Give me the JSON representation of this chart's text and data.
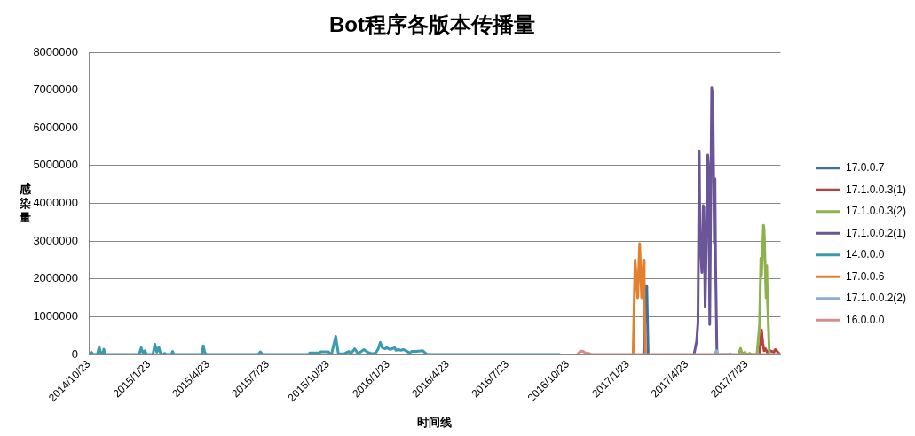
{
  "chart_data": {
    "type": "line",
    "title": "Bot程序各版本传播量",
    "xlabel": "时间线",
    "ylabel": "感染量",
    "xlim": [
      "2014-10-23",
      "2017-09-13"
    ],
    "xticks": [
      {
        "value": "2014-10-23",
        "label": "2014/10/23"
      },
      {
        "value": "2015-01-23",
        "label": "2015/1/23"
      },
      {
        "value": "2015-04-23",
        "label": "2015/4/23"
      },
      {
        "value": "2015-07-23",
        "label": "2015/7/23"
      },
      {
        "value": "2015-10-23",
        "label": "2015/10/23"
      },
      {
        "value": "2016-01-23",
        "label": "2016/1/23"
      },
      {
        "value": "2016-04-23",
        "label": "2016/4/23"
      },
      {
        "value": "2016-07-23",
        "label": "2016/7/23"
      },
      {
        "value": "2016-10-23",
        "label": "2016/10/23"
      },
      {
        "value": "2017-01-23",
        "label": "2017/1/23"
      },
      {
        "value": "2017-04-23",
        "label": "2017/4/23"
      },
      {
        "value": "2017-07-23",
        "label": "2017/7/23"
      }
    ],
    "ylim": [
      0,
      8000000
    ],
    "yticks": [
      0,
      1000000,
      2000000,
      3000000,
      4000000,
      5000000,
      6000000,
      7000000,
      8000000
    ],
    "grid": "y",
    "legend": "right",
    "marker": "none",
    "series": [
      {
        "name": "17.0.0.7",
        "color": "#3d6fa6",
        "x": [
          "2017-02-16",
          "2017-02-20",
          "2017-02-21",
          "2017-02-23"
        ],
        "values": [
          0,
          1800000,
          1700000,
          0
        ]
      },
      {
        "name": "17.1.0.0.3(1)",
        "color": "#b7413e",
        "x": [
          "2017-08-12",
          "2017-08-15",
          "2017-08-17",
          "2017-08-19",
          "2017-08-21",
          "2017-08-24",
          "2017-08-28",
          "2017-08-31",
          "2017-09-03",
          "2017-09-05",
          "2017-09-07",
          "2017-09-11"
        ],
        "values": [
          0,
          650000,
          300000,
          100000,
          150000,
          50000,
          100000,
          80000,
          60000,
          130000,
          100000,
          20000
        ]
      },
      {
        "name": "17.1.0.0.3(2)",
        "color": "#8db14c",
        "x": [
          "2017-07-11",
          "2017-07-14",
          "2017-07-16",
          "2017-07-17",
          "2017-07-21",
          "2017-07-23",
          "2017-07-28",
          "2017-07-30",
          "2017-08-08",
          "2017-08-12",
          "2017-08-14",
          "2017-08-15",
          "2017-08-18",
          "2017-08-19",
          "2017-08-22",
          "2017-08-23",
          "2017-08-24",
          "2017-08-27"
        ],
        "values": [
          0,
          160000,
          60000,
          0,
          60000,
          0,
          30000,
          0,
          0,
          780000,
          2550000,
          2070000,
          3420000,
          3300000,
          1500000,
          2350000,
          1500000,
          0
        ]
      },
      {
        "name": "17.1.0.0.2(1)",
        "color": "#6a5597",
        "x": [
          "2017-05-04",
          "2017-05-08",
          "2017-05-10",
          "2017-05-12",
          "2017-05-13",
          "2017-05-16",
          "2017-05-18",
          "2017-05-19",
          "2017-05-21",
          "2017-05-23",
          "2017-05-25",
          "2017-05-26",
          "2017-05-27",
          "2017-05-28",
          "2017-05-31",
          "2017-06-01",
          "2017-06-02",
          "2017-06-04",
          "2017-06-05",
          "2017-06-06",
          "2017-06-08"
        ],
        "values": [
          0,
          350000,
          830000,
          5390000,
          3270000,
          2170000,
          3940000,
          3900000,
          1260000,
          3100000,
          5280000,
          5000000,
          3400000,
          790000,
          7070000,
          6900000,
          6420000,
          2950000,
          4650000,
          2320000,
          0
        ]
      },
      {
        "name": "14.0.0.0",
        "color": "#3b9ab0",
        "x": [
          "2014-10-23",
          "2014-10-27",
          "2014-10-30",
          "2014-11-05",
          "2014-11-08",
          "2014-11-11",
          "2014-11-13",
          "2014-11-15",
          "2014-11-17",
          "2015-01-08",
          "2015-01-11",
          "2015-01-14",
          "2015-01-17",
          "2015-01-19",
          "2015-01-29",
          "2015-02-01",
          "2015-02-04",
          "2015-02-07",
          "2015-02-10",
          "2015-02-14",
          "2015-02-16",
          "2015-02-18",
          "2015-02-26",
          "2015-02-28",
          "2015-03-02",
          "2015-04-12",
          "2015-04-14",
          "2015-04-16",
          "2015-04-18",
          "2015-04-20",
          "2015-07-09",
          "2015-07-12",
          "2015-07-15",
          "2015-09-24",
          "2015-09-25",
          "2015-10-10",
          "2015-10-12",
          "2015-10-24",
          "2015-10-27",
          "2015-10-29",
          "2015-11-04",
          "2015-11-08",
          "2015-11-17",
          "2015-11-24",
          "2015-11-27",
          "2015-12-03",
          "2015-12-08",
          "2015-12-17",
          "2015-12-21",
          "2015-12-25",
          "2015-12-30",
          "2016-01-04",
          "2016-01-08",
          "2016-01-11",
          "2016-01-14",
          "2016-01-18",
          "2016-01-21",
          "2016-01-26",
          "2016-02-02",
          "2016-02-04",
          "2016-02-08",
          "2016-02-11",
          "2016-02-16",
          "2016-02-21",
          "2016-02-25",
          "2016-02-28",
          "2016-03-06",
          "2016-03-16",
          "2016-03-21",
          "2016-03-23",
          "2016-10-11"
        ],
        "values": [
          0,
          60000,
          0,
          0,
          190000,
          0,
          0,
          140000,
          0,
          0,
          180000,
          30000,
          100000,
          0,
          0,
          270000,
          60000,
          190000,
          0,
          0,
          30000,
          0,
          0,
          80000,
          0,
          0,
          40000,
          230000,
          60000,
          0,
          0,
          70000,
          0,
          0,
          40000,
          40000,
          70000,
          70000,
          0,
          40000,
          480000,
          20000,
          20000,
          80000,
          20000,
          150000,
          20000,
          130000,
          80000,
          40000,
          20000,
          40000,
          150000,
          320000,
          180000,
          150000,
          180000,
          130000,
          180000,
          110000,
          130000,
          110000,
          130000,
          80000,
          40000,
          80000,
          80000,
          100000,
          20000,
          0,
          0
        ]
      },
      {
        "name": "17.0.0.6",
        "color": "#e3802f",
        "x": [
          "2017-01-31",
          "2017-02-03",
          "2017-02-07",
          "2017-02-10",
          "2017-02-13",
          "2017-02-16",
          "2017-02-17",
          "2017-02-19"
        ],
        "values": [
          0,
          2500000,
          1500000,
          2930000,
          1500000,
          2500000,
          1500000,
          0
        ]
      },
      {
        "name": "17.1.0.0.2(2)",
        "color": "#8eabd5",
        "x": [
          "2017-06-05",
          "2017-06-07",
          "2017-06-08",
          "2017-06-10",
          "2017-06-26",
          "2017-06-28",
          "2017-06-30"
        ],
        "values": [
          0,
          100000,
          80000,
          0,
          0,
          20000,
          0
        ]
      },
      {
        "name": "16.0.0.0",
        "color": "#d58e8c",
        "x": [
          "2016-11-08",
          "2016-11-12",
          "2016-11-16",
          "2016-11-19",
          "2016-11-24",
          "2016-11-28",
          "2017-09-13"
        ],
        "values": [
          20000,
          90000,
          80000,
          40000,
          30000,
          0,
          0
        ]
      }
    ]
  }
}
